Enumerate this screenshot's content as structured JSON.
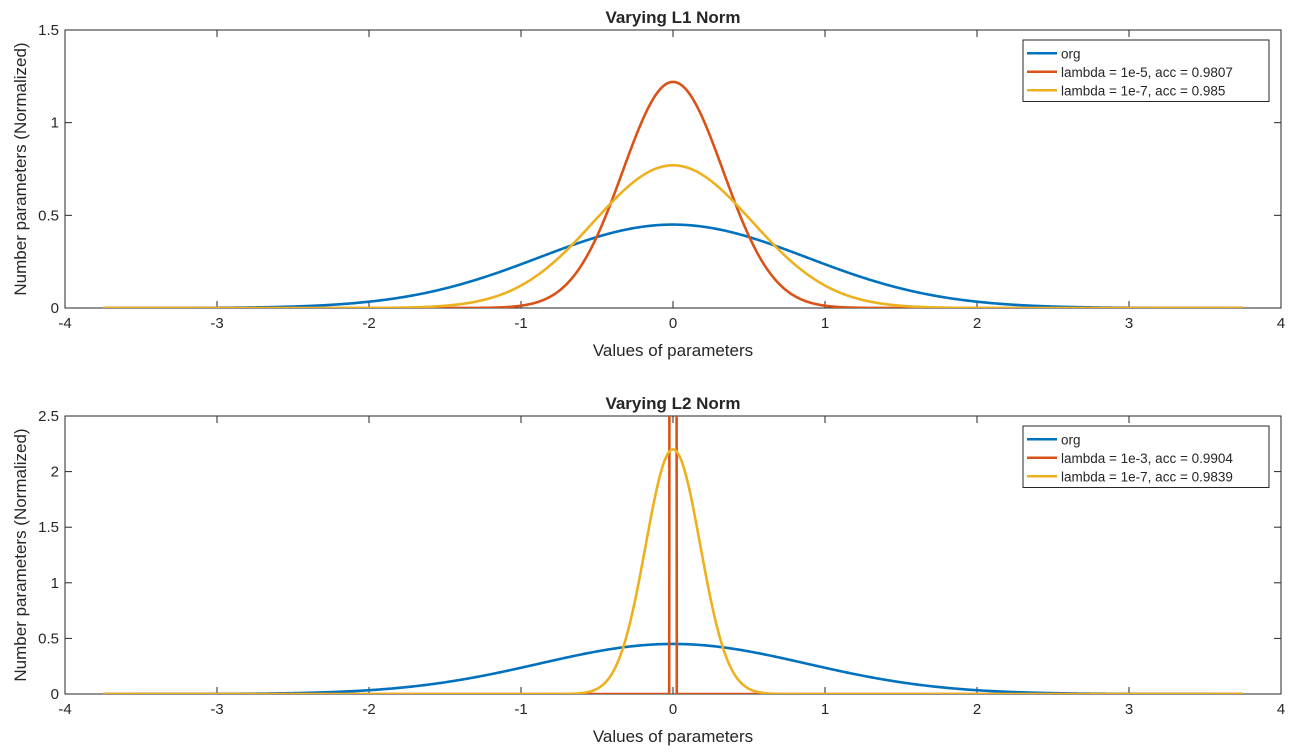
{
  "chart_data": [
    {
      "type": "line",
      "title": "Varying L1 Norm",
      "xlabel": "Values of parameters",
      "ylabel": "Number parameters (Normalized)",
      "xlim": [
        -4,
        4
      ],
      "ylim": [
        0,
        1.5
      ],
      "xticks": [
        "-4",
        "-3",
        "-2",
        "-1",
        "0",
        "1",
        "2",
        "3",
        "4"
      ],
      "yticks": [
        "0",
        "0.5",
        "1",
        "1.5"
      ],
      "grid": false,
      "legend_position": "top-right",
      "x_range": [
        -3.75,
        3.75
      ],
      "series": [
        {
          "name": "org",
          "color": "#0072BD",
          "shape": "gaussian",
          "mean": 0,
          "sigma": 0.88,
          "peak": 0.45
        },
        {
          "name": "lambda = 1e-5, acc = 0.9807",
          "color": "#D95319",
          "shape": "gaussian",
          "mean": 0,
          "sigma": 0.33,
          "peak": 1.22
        },
        {
          "name": "lambda = 1e-7, acc = 0.985",
          "color": "#EDB120",
          "shape": "gaussian",
          "mean": 0,
          "sigma": 0.52,
          "peak": 0.77
        }
      ]
    },
    {
      "type": "line",
      "title": "Varying L2 Norm",
      "xlabel": "Values of parameters",
      "ylabel": "Number parameters (Normalized)",
      "xlim": [
        -4,
        4
      ],
      "ylim": [
        0,
        2.5
      ],
      "xticks": [
        "-4",
        "-3",
        "-2",
        "-1",
        "0",
        "1",
        "2",
        "3",
        "4"
      ],
      "yticks": [
        "0",
        "0.5",
        "1",
        "1.5",
        "2",
        "2.5"
      ],
      "grid": false,
      "legend_position": "top-right",
      "x_range": [
        -3.75,
        3.75
      ],
      "series": [
        {
          "name": "org",
          "color": "#0072BD",
          "shape": "gaussian",
          "mean": 0,
          "sigma": 0.88,
          "peak": 0.45
        },
        {
          "name": "lambda = 1e-3, acc = 0.9904",
          "color": "#D95319",
          "shape": "spike",
          "left": -0.02,
          "right": 0.02,
          "peak": 10
        },
        {
          "name": "lambda = 1e-7, acc = 0.9839",
          "color": "#EDB120",
          "shape": "gaussian",
          "mean": 0,
          "sigma": 0.18,
          "peak": 2.2
        }
      ]
    }
  ]
}
